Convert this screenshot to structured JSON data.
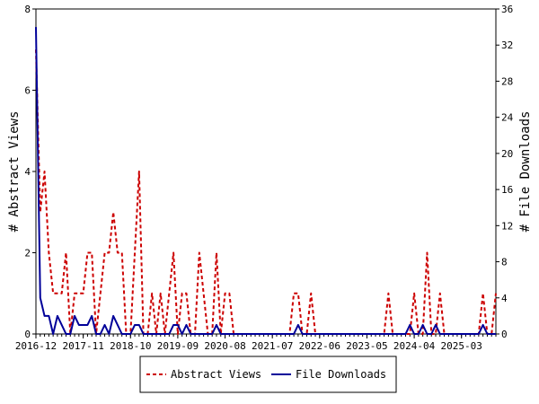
{
  "chart_data": {
    "type": "line",
    "x_tick_labels": [
      "2016-12",
      "2017-11",
      "2018-10",
      "2019-09",
      "2020-08",
      "2021-07",
      "2022-06",
      "2023-05",
      "2024-04",
      "2025-03"
    ],
    "x_tick_months": [
      0,
      11,
      22,
      33,
      44,
      55,
      66,
      77,
      88,
      99
    ],
    "xlim": [
      0,
      107
    ],
    "y_left": {
      "label": "# Abstract Views",
      "ticks": [
        0,
        2,
        4,
        6,
        8
      ],
      "lim": [
        0,
        8
      ]
    },
    "y_right": {
      "label": "# File Downloads",
      "ticks": [
        0,
        4,
        8,
        12,
        16,
        20,
        24,
        28,
        32,
        36
      ],
      "lim": [
        0,
        36
      ]
    },
    "series": [
      {
        "name": "Abstract Views",
        "axis": "left",
        "color": "#cc0000",
        "style": "dashed",
        "values": [
          7,
          3,
          4,
          2,
          1,
          1,
          1,
          2,
          0,
          1,
          1,
          1,
          2,
          2,
          0,
          1,
          2,
          2,
          3,
          2,
          2,
          0,
          0,
          2,
          4,
          0,
          0,
          1,
          0,
          1,
          0,
          1,
          2,
          0,
          1,
          1,
          0,
          0,
          2,
          1,
          0,
          0,
          2,
          0,
          1,
          1,
          0,
          0,
          0,
          0,
          0,
          0,
          0,
          0,
          0,
          0,
          0,
          0,
          0,
          0,
          1,
          1,
          0,
          0,
          1,
          0,
          0,
          0,
          0,
          0,
          0,
          0,
          0,
          0,
          0,
          0,
          0,
          0,
          0,
          0,
          0,
          0,
          1,
          0,
          0,
          0,
          0,
          0,
          1,
          0,
          0,
          2,
          0,
          0,
          1,
          0,
          0,
          0,
          0,
          0,
          0,
          0,
          0,
          0,
          1,
          0,
          0,
          1
        ]
      },
      {
        "name": "File Downloads",
        "axis": "right",
        "color": "#000099",
        "style": "solid",
        "values": [
          34,
          4,
          2,
          2,
          0,
          2,
          1,
          0,
          0,
          2,
          1,
          1,
          1,
          2,
          0,
          0,
          1,
          0,
          2,
          1,
          0,
          0,
          0,
          1,
          1,
          0,
          0,
          0,
          0,
          0,
          0,
          0,
          1,
          1,
          0,
          1,
          0,
          0,
          0,
          0,
          0,
          0,
          1,
          0,
          0,
          0,
          0,
          0,
          0,
          0,
          0,
          0,
          0,
          0,
          0,
          0,
          0,
          0,
          0,
          0,
          0,
          1,
          0,
          0,
          0,
          0,
          0,
          0,
          0,
          0,
          0,
          0,
          0,
          0,
          0,
          0,
          0,
          0,
          0,
          0,
          0,
          0,
          0,
          0,
          0,
          0,
          0,
          1,
          0,
          0,
          1,
          0,
          0,
          1,
          0,
          0,
          0,
          0,
          0,
          0,
          0,
          0,
          0,
          0,
          1,
          0,
          0,
          0
        ]
      }
    ],
    "legend": {
      "placement": "bottom-center",
      "entries": [
        "Abstract Views",
        "File Downloads"
      ]
    }
  }
}
